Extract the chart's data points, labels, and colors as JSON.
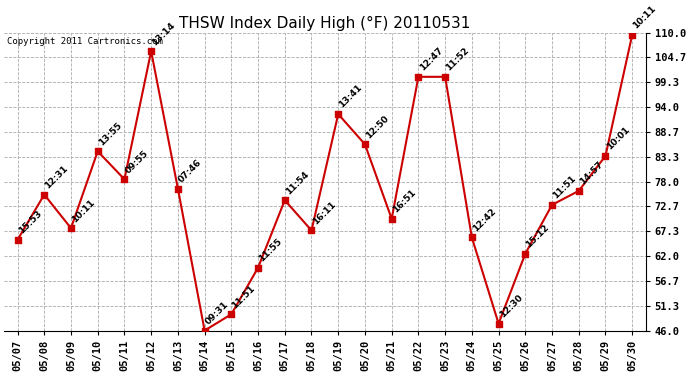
{
  "title": "THSW Index Daily High (°F) 20110531",
  "copyright": "Copyright 2011 Cartronics.com",
  "dates": [
    "05/07",
    "05/08",
    "05/09",
    "05/10",
    "05/11",
    "05/12",
    "05/13",
    "05/14",
    "05/15",
    "05/16",
    "05/17",
    "05/18",
    "05/19",
    "05/20",
    "05/21",
    "05/22",
    "05/23",
    "05/24",
    "05/25",
    "05/26",
    "05/27",
    "05/28",
    "05/29",
    "05/30"
  ],
  "values": [
    65.5,
    75.2,
    68.0,
    84.5,
    78.5,
    106.0,
    76.5,
    46.0,
    49.5,
    59.5,
    74.0,
    67.5,
    92.5,
    86.0,
    70.0,
    100.5,
    100.5,
    66.0,
    47.5,
    62.5,
    73.0,
    76.0,
    83.5,
    109.5
  ],
  "labels": [
    "15:53",
    "12:31",
    "10:11",
    "13:55",
    "09:55",
    "13:14",
    "07:46",
    "09:31",
    "11:51",
    "11:55",
    "11:54",
    "16:11",
    "13:41",
    "12:50",
    "16:51",
    "12:47",
    "11:52",
    "12:42",
    "12:30",
    "15:12",
    "11:51",
    "14:57",
    "10:01",
    "10:11"
  ],
  "yticks": [
    46.0,
    51.3,
    56.7,
    62.0,
    67.3,
    72.7,
    78.0,
    83.3,
    88.7,
    94.0,
    99.3,
    104.7,
    110.0
  ],
  "ylim": [
    46.0,
    110.0
  ],
  "line_color": "#cc0000",
  "marker_color": "#cc0000",
  "bg_color": "#ffffff",
  "grid_color": "#aaaaaa",
  "title_fontsize": 11,
  "label_fontsize": 6.5,
  "copyright_fontsize": 6.5,
  "tick_fontsize": 7.5
}
